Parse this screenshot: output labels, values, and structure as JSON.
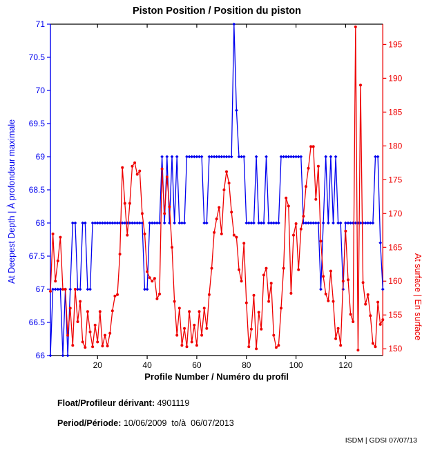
{
  "title": "Piston Position / Position du piston",
  "footer": {
    "float_label": "Float/Profileur dérivant:",
    "float_value": " 4901119",
    "period_label": "Period/Période:",
    "period_value": " 10/06/2009  to/à  06/07/2013",
    "credit": "ISDM | GDSI 07/07/13"
  },
  "colors": {
    "left_series": "#0000ee",
    "right_series": "#ee0000",
    "axis": "#000000",
    "background": "#ffffff"
  },
  "chart_data": {
    "type": "line",
    "title": "Piston Position / Position du piston",
    "xlabel": "Profile Number / Numéro du profil",
    "grid": false,
    "x_axis": {
      "label": "Profile Number / Numéro du profil",
      "min": 1,
      "max": 135,
      "ticks": [
        20,
        40,
        60,
        80,
        100,
        120
      ]
    },
    "left_axis": {
      "label": "At Deepest Depth | À profondeur maximale",
      "min": 66,
      "max": 71,
      "ticks": [
        66,
        66.5,
        67,
        67.5,
        68,
        68.5,
        69,
        69.5,
        70,
        70.5,
        71
      ],
      "color": "#0000ee"
    },
    "right_axis": {
      "label": "At surface | En surface",
      "min": 149,
      "max": 198,
      "ticks": [
        150,
        155,
        160,
        165,
        170,
        175,
        180,
        185,
        190,
        195
      ],
      "color": "#ee0000"
    },
    "series": [
      {
        "name": "At Deepest Depth | À profondeur maximale",
        "axis": "left",
        "color": "#0000ee",
        "marker": "diamond",
        "values": [
          66,
          67,
          67,
          67,
          67,
          66,
          67,
          66,
          67,
          68,
          68,
          67,
          67,
          68,
          68,
          67,
          67,
          68,
          68,
          68,
          68,
          68,
          68,
          68,
          68,
          68,
          68,
          68,
          68,
          68,
          68,
          68,
          68,
          68,
          68,
          68,
          68,
          68,
          67,
          67,
          68,
          68,
          68,
          68,
          68,
          69,
          68,
          69,
          68,
          69,
          68,
          69,
          68,
          68,
          68,
          69,
          69,
          69,
          69,
          69,
          69,
          69,
          68,
          68,
          69,
          69,
          69,
          69,
          69,
          69,
          69,
          69,
          69,
          69,
          71,
          69.7,
          69,
          69,
          69,
          68,
          68,
          68,
          68,
          69,
          68,
          68,
          68,
          69,
          68,
          68,
          68,
          68,
          68,
          69,
          69,
          69,
          69,
          69,
          69,
          69,
          69,
          69,
          68,
          68,
          68,
          68,
          68,
          68,
          68,
          67,
          68,
          69,
          68,
          69,
          68,
          69,
          68,
          68,
          67,
          68,
          68,
          68,
          68,
          68,
          68,
          68,
          68,
          68,
          68,
          68,
          68,
          69,
          69,
          67.7,
          67
        ]
      },
      {
        "name": "At surface | En surface",
        "axis": "right",
        "color": "#ee0000",
        "marker": "circle",
        "values": [
          158.5,
          167,
          160,
          163,
          166.5,
          158.8,
          158.8,
          152,
          156,
          150.5,
          158.8,
          154,
          157,
          151,
          150.2,
          155.5,
          152.5,
          150.3,
          153.5,
          151,
          155.5,
          150.4,
          152,
          150.4,
          152.3,
          155.6,
          157.8,
          158,
          164,
          176.8,
          171.5,
          166.8,
          171.5,
          177,
          177.5,
          175.8,
          176.3,
          170,
          167,
          161.4,
          160.5,
          160,
          160.4,
          157.4,
          158.1,
          176.6,
          170,
          175.4,
          171,
          165,
          157,
          152,
          156,
          150.5,
          153,
          150.3,
          155.5,
          151,
          153.5,
          150.5,
          155.5,
          152,
          156,
          153,
          158,
          161.9,
          167.2,
          169.2,
          170.9,
          167,
          173.5,
          176.2,
          174.5,
          170.2,
          166.8,
          166.5,
          161.7,
          160,
          165.6,
          156.8,
          150.3,
          152.9,
          157.9,
          150,
          155.4,
          152.9,
          160.9,
          161.9,
          157,
          159.7,
          152,
          150.2,
          150.5,
          156,
          161.9,
          172.3,
          171.1,
          158.2,
          166.8,
          168.5,
          161.7,
          167.7,
          169.6,
          174,
          176.7,
          179.9,
          179.9,
          172.1,
          177,
          165.9,
          160.7,
          158.1,
          157.1,
          161.5,
          157,
          151.5,
          153,
          150.5,
          160,
          167.4,
          160.2,
          155.1,
          154,
          197.6,
          149.8,
          189,
          159.8,
          156.6,
          158,
          154.9,
          150.8,
          150.3,
          156.9,
          153.6,
          154.3
        ]
      }
    ]
  }
}
